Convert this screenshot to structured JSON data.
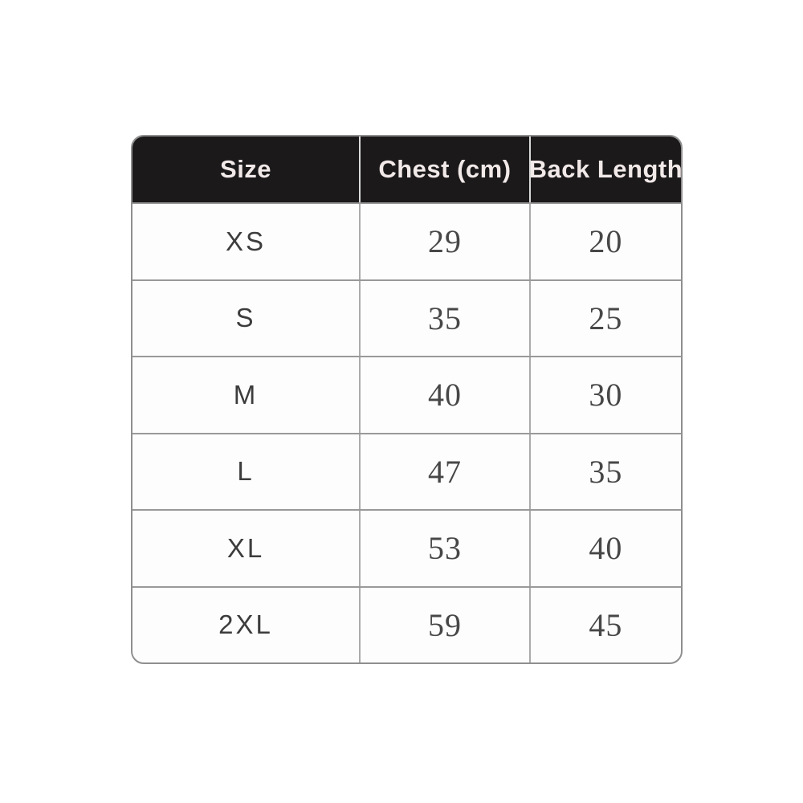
{
  "chart_data": {
    "type": "table",
    "columns": [
      "Size",
      "Chest (cm)",
      "Back Length"
    ],
    "rows": [
      [
        "XS",
        "29",
        "20"
      ],
      [
        "S",
        "35",
        "25"
      ],
      [
        "M",
        "40",
        "30"
      ],
      [
        "L",
        "47",
        "35"
      ],
      [
        "XL",
        "53",
        "40"
      ],
      [
        "2XL",
        "59",
        "45"
      ]
    ],
    "layout": {
      "header_position": "top",
      "grid": "on",
      "corner_style": "rounded"
    }
  },
  "colors": {
    "header_bg": "#1b191a",
    "header_text": "#f2e9e9",
    "grid_line": "#999999",
    "outer_border": "#8f8f8f",
    "body_text": "#474747",
    "background": "#ffffff"
  }
}
